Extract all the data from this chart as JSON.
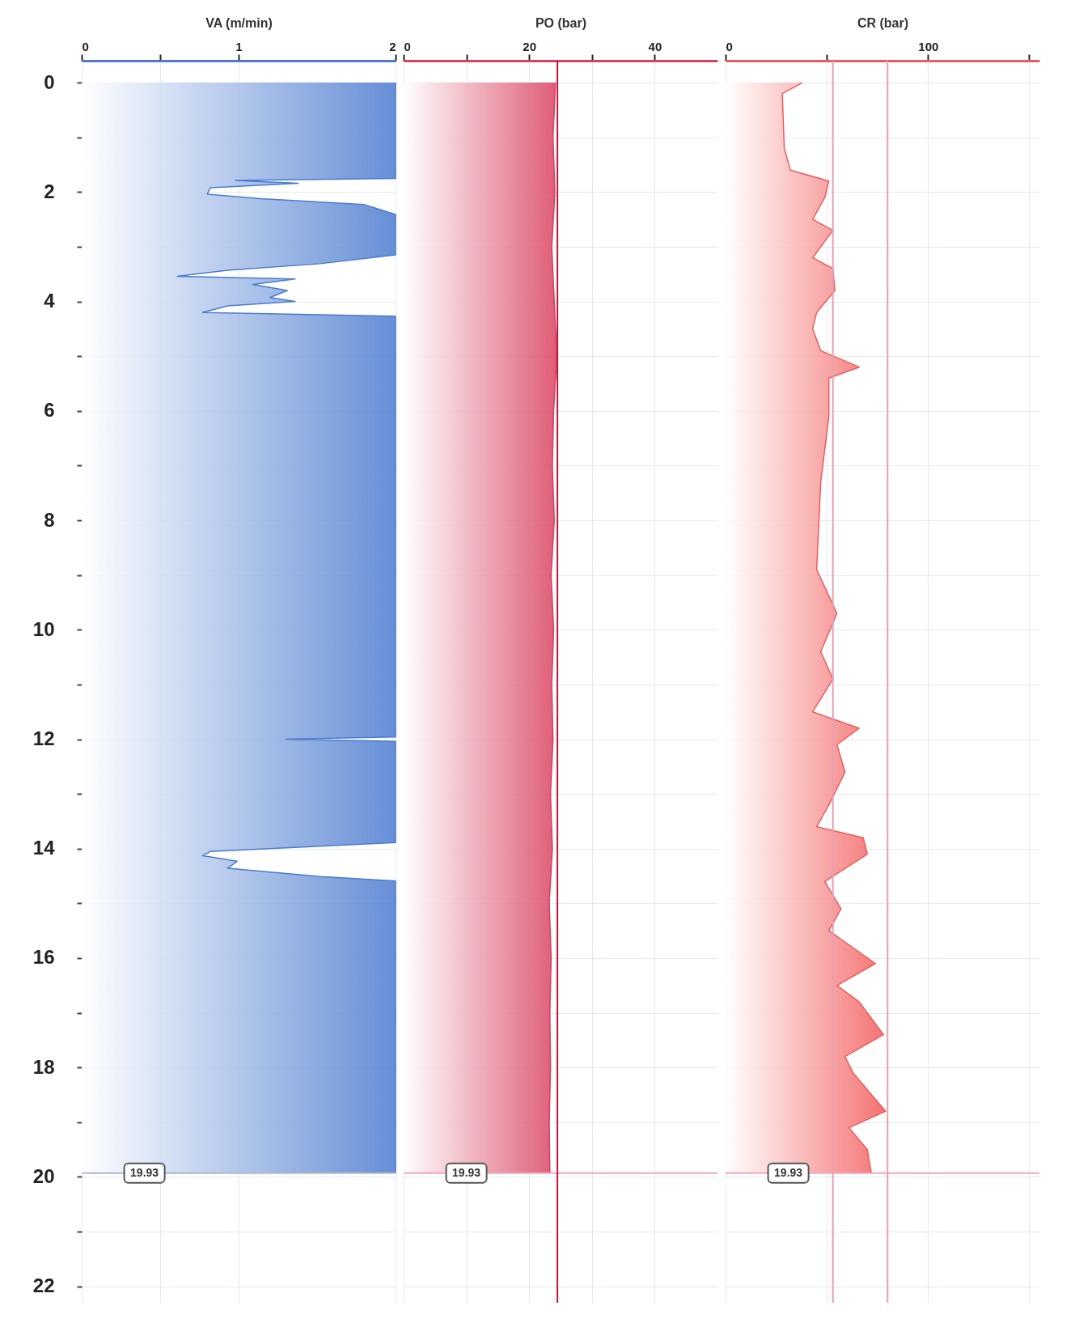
{
  "chart_data": [
    {
      "type": "area",
      "orientation": "horizontal",
      "xlabel": "VA (m/min)",
      "xlim": [
        0,
        2
      ],
      "xticks": [
        0,
        {
          "value": 0.5,
          "label": null
        },
        1,
        2
      ],
      "ylim": [
        22.3,
        -0.4
      ],
      "yticks": [
        0,
        {
          "value": 1,
          "label": null
        },
        2,
        {
          "value": 3,
          "label": null
        },
        4,
        {
          "value": 5,
          "label": null
        },
        6,
        {
          "value": 7,
          "label": null
        },
        8,
        {
          "value": 9,
          "label": null
        },
        10,
        {
          "value": 11,
          "label": null
        },
        12,
        {
          "value": 13,
          "label": null
        },
        14,
        {
          "value": 15,
          "label": null
        },
        16,
        {
          "value": 17,
          "label": null
        },
        18,
        {
          "value": 19,
          "label": null
        },
        20,
        {
          "value": 21,
          "label": null
        },
        22
      ],
      "grid": true,
      "x": [
        0,
        1.75,
        1.79,
        1.84,
        1.92,
        2.04,
        2.12,
        2.23,
        2.41,
        2.43,
        3.15,
        3.31,
        3.43,
        3.54,
        3.59,
        3.69,
        3.8,
        3.93,
        4.0,
        4.08,
        4.2,
        4.27,
        11.96,
        12.0,
        12.04,
        13.89,
        14.05,
        14.13,
        14.23,
        14.36,
        14.51,
        14.59,
        19.93
      ],
      "series": [
        {
          "color": "#4a7bd0",
          "values": [
            2,
            2,
            0.98,
            1.38,
            0.82,
            0.8,
            1.14,
            1.8,
            2,
            2,
            2,
            1.52,
            0.93,
            0.61,
            1.36,
            1.09,
            1.31,
            1.2,
            1.36,
            0.93,
            0.77,
            2,
            2,
            1.3,
            2,
            2,
            0.82,
            0.77,
            0.99,
            0.93,
            1.52,
            2,
            2
          ]
        }
      ],
      "ref_lines": [
        {
          "axis": "y",
          "value": 19.93,
          "label": "19.93",
          "color": "#b0b8c8"
        }
      ]
    },
    {
      "type": "area",
      "orientation": "horizontal",
      "xlabel": "PO (bar)",
      "xlim": [
        0,
        50
      ],
      "xticks": [
        0,
        {
          "value": 10,
          "label": null
        },
        20,
        {
          "value": 30,
          "label": null
        },
        40
      ],
      "ylim": [
        22.3,
        -0.4
      ],
      "yticks": [
        0,
        {
          "value": 1,
          "label": null
        },
        2,
        {
          "value": 3,
          "label": null
        },
        4,
        {
          "value": 5,
          "label": null
        },
        6,
        {
          "value": 7,
          "label": null
        },
        8,
        {
          "value": 9,
          "label": null
        },
        10,
        {
          "value": 11,
          "label": null
        },
        12,
        {
          "value": 13,
          "label": null
        },
        14,
        {
          "value": 15,
          "label": null
        },
        16,
        {
          "value": 17,
          "label": null
        },
        18,
        {
          "value": 19,
          "label": null
        },
        20,
        {
          "value": 21,
          "label": null
        },
        22
      ],
      "grid": true,
      "tick_labels": "x",
      "x": [
        0,
        1,
        2,
        3,
        4,
        5,
        6,
        7,
        8,
        9,
        10,
        11,
        12,
        13,
        14,
        15,
        16,
        17,
        18,
        19,
        19.93
      ],
      "series": [
        {
          "color": "#d9405e",
          "values": [
            24.2,
            23.8,
            24.1,
            23.6,
            24,
            24.4,
            23.9,
            23.7,
            24,
            23.5,
            23.9,
            23.6,
            23.8,
            23.4,
            23.7,
            23.2,
            23.5,
            23.3,
            23.4,
            23.2,
            23.3
          ]
        }
      ],
      "ref_lines": [
        {
          "axis": "y",
          "value": 19.93,
          "label": "19.93",
          "color": "#f0a8b8"
        },
        {
          "axis": "x",
          "value": 24.5,
          "color": "#c0143c"
        }
      ]
    },
    {
      "type": "area",
      "orientation": "horizontal",
      "xlabel": "CR (bar)",
      "xlim": [
        0,
        155
      ],
      "xticks": [
        0,
        {
          "value": 50,
          "label": null
        },
        100,
        {
          "value": 150,
          "label": null
        }
      ],
      "ylim": [
        22.3,
        -0.4
      ],
      "yticks": [
        0,
        {
          "value": 1,
          "label": null
        },
        2,
        {
          "value": 3,
          "label": null
        },
        4,
        {
          "value": 5,
          "label": null
        },
        6,
        {
          "value": 7,
          "label": null
        },
        8,
        {
          "value": 9,
          "label": null
        },
        10,
        {
          "value": 11,
          "label": null
        },
        12,
        {
          "value": 13,
          "label": null
        },
        14,
        {
          "value": 15,
          "label": null
        },
        16,
        {
          "value": 17,
          "label": null
        },
        18,
        {
          "value": 19,
          "label": null
        },
        20,
        {
          "value": 21,
          "label": null
        },
        22
      ],
      "grid": true,
      "tick_labels": "x",
      "x": [
        0,
        0.2,
        1.2,
        1.6,
        1.8,
        2.1,
        2.5,
        2.7,
        3.2,
        3.4,
        3.8,
        4.2,
        4.5,
        4.9,
        5.2,
        5.4,
        6.1,
        7.3,
        8.9,
        9.7,
        10.4,
        10.9,
        11.5,
        11.8,
        12.1,
        12.6,
        13.2,
        13.6,
        13.8,
        14.1,
        14.6,
        15.1,
        15.5,
        16.1,
        16.5,
        16.8,
        17.4,
        17.8,
        18.1,
        18.8,
        19.1,
        19.5,
        19.93
      ],
      "series": [
        {
          "color": "#f25a5a",
          "values": [
            38,
            28,
            29,
            32,
            51,
            49,
            43,
            53,
            43,
            53,
            54,
            45,
            43,
            47,
            66,
            51,
            51,
            47,
            45,
            55,
            47,
            53,
            43,
            66,
            55,
            59,
            51,
            45,
            68,
            70,
            49,
            57,
            51,
            74,
            55,
            66,
            78,
            59,
            63,
            79,
            61,
            70,
            72
          ]
        }
      ],
      "ref_lines": [
        {
          "axis": "y",
          "value": 19.93,
          "label": "19.93",
          "color": "#f0a8b8"
        },
        {
          "axis": "x",
          "value": 53,
          "color": "#e8a0b0"
        },
        {
          "axis": "x",
          "value": 80,
          "color": "#e8a0b0"
        }
      ]
    }
  ]
}
